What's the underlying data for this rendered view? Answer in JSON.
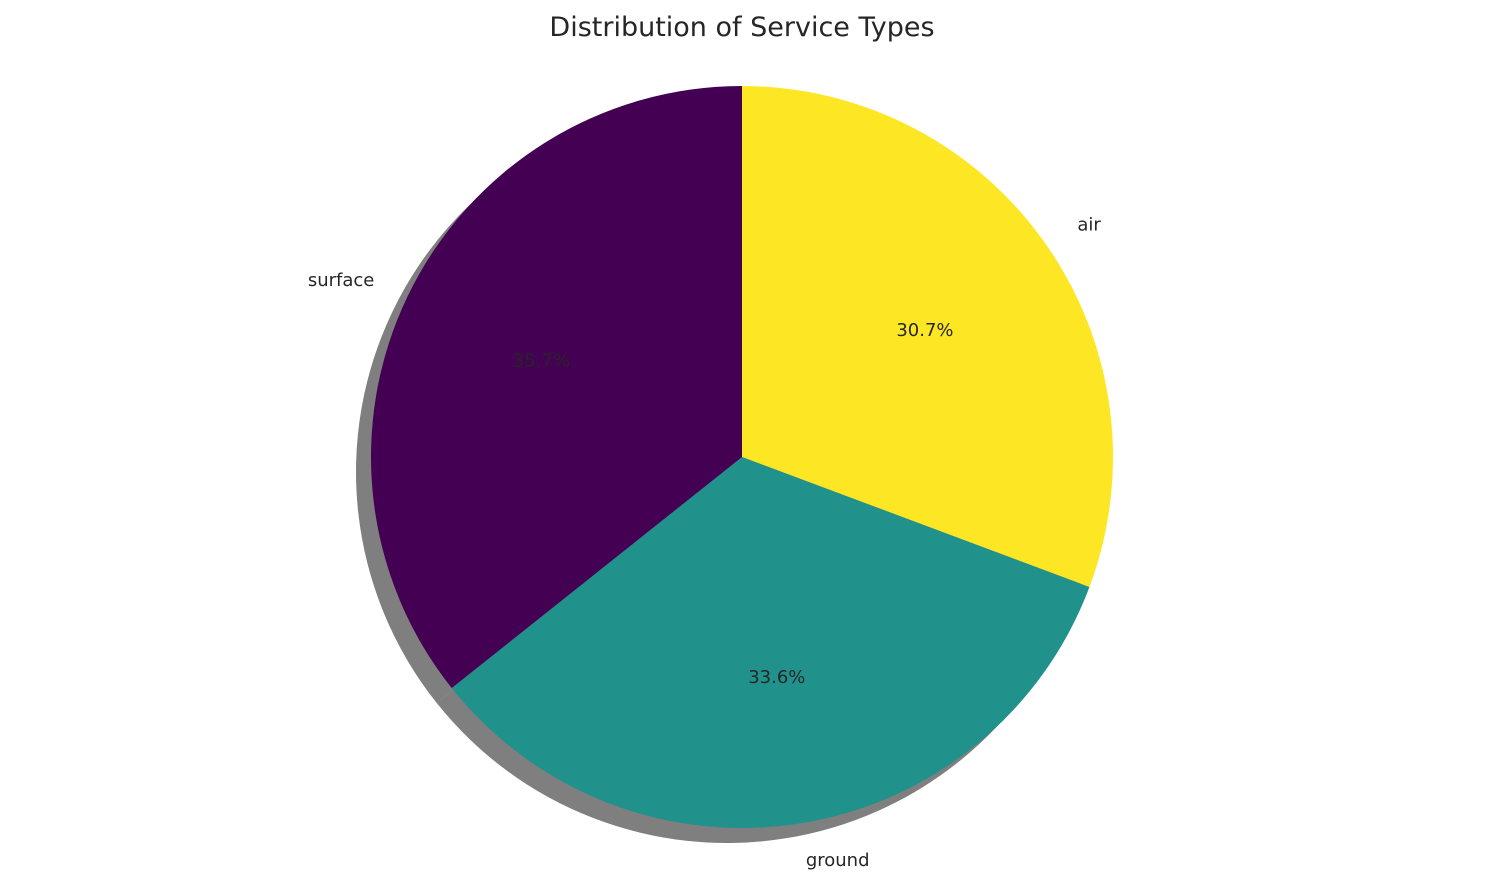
{
  "chart_data": {
    "type": "pie",
    "title": "Distribution of Service Types",
    "labels": [
      "air",
      "ground",
      "surface"
    ],
    "values": [
      30.7,
      33.6,
      35.7
    ],
    "percent_labels": [
      "30.7%",
      "33.6%",
      "35.7%"
    ],
    "colors": [
      "#fde725",
      "#21918c",
      "#440154"
    ],
    "start_angle_deg": 90,
    "direction": "clockwise",
    "shadow": true,
    "legend": "none"
  }
}
